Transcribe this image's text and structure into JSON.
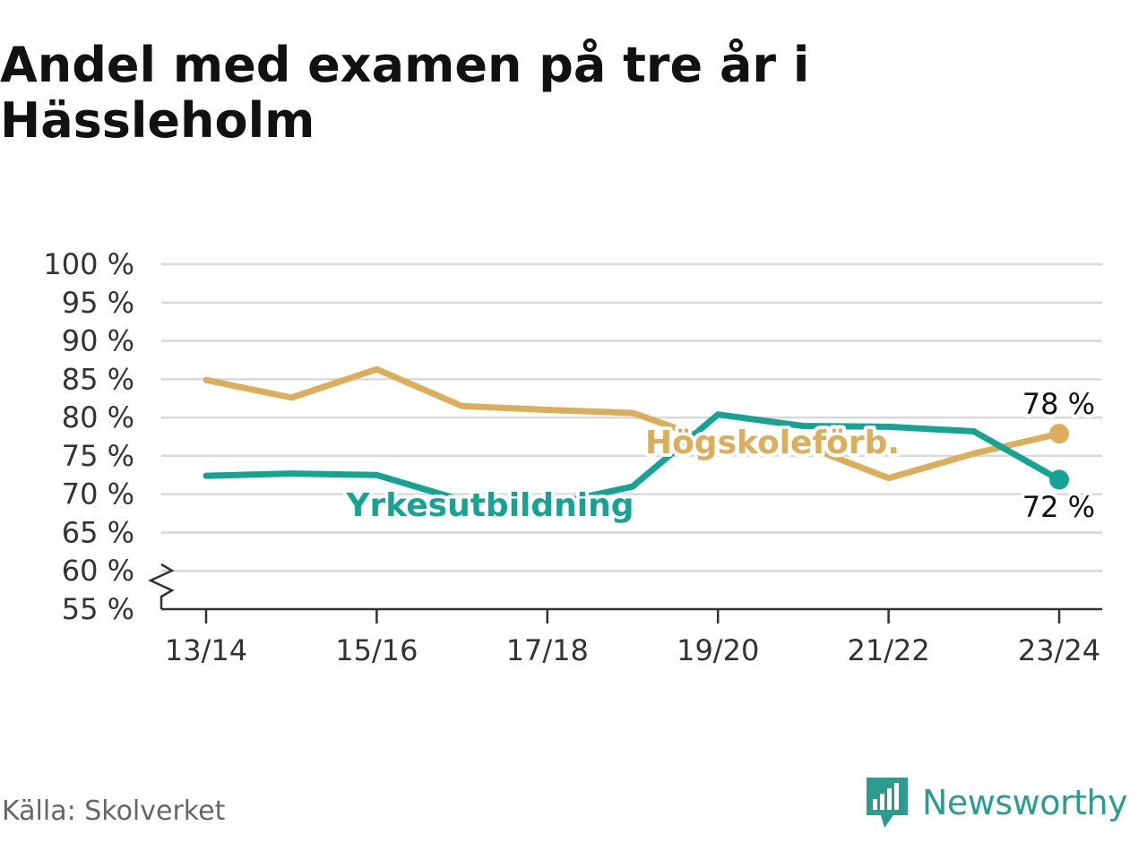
{
  "title": "Andel med examen på tre år i Hässleholm",
  "source": "Källa: Skolverket",
  "brand": {
    "name": "Newsworthy",
    "icon": "newsworthy-logo-icon",
    "color": "#2a9d8f"
  },
  "colors": {
    "yrke": "#16a394",
    "hogskole": "#dcad5b",
    "grid": "#d9d9d9",
    "axis": "#333333"
  },
  "chart_data": {
    "type": "line",
    "x": [
      "13/14",
      "14/15",
      "15/16",
      "16/17",
      "17/18",
      "18/19",
      "19/20",
      "20/21",
      "21/22",
      "22/23",
      "23/24"
    ],
    "xticks": [
      "13/14",
      "15/16",
      "17/18",
      "19/20",
      "21/22",
      "23/24"
    ],
    "ylim": [
      55,
      100
    ],
    "yticks": [
      100,
      95,
      90,
      85,
      80,
      75,
      70,
      65,
      60,
      55
    ],
    "ytick_labels": [
      "100 %",
      "95 %",
      "90 %",
      "85 %",
      "80 %",
      "75 %",
      "70 %",
      "65 %",
      "60 %",
      "55 %"
    ],
    "grid": true,
    "axis_break": true,
    "series": [
      {
        "name": "Högskoleförb.",
        "color": "#dcad5b",
        "values": [
          84.9,
          82.6,
          86.3,
          81.5,
          81.0,
          80.6,
          76.7,
          76.4,
          72.1,
          75.3,
          77.9
        ],
        "end_label": "78 %"
      },
      {
        "name": "Yrkesutbildning",
        "color": "#16a394",
        "values": [
          72.4,
          72.7,
          72.5,
          69.2,
          68.6,
          71.0,
          80.4,
          78.9,
          78.8,
          78.2,
          71.9
        ],
        "end_label": "72 %"
      }
    ]
  }
}
